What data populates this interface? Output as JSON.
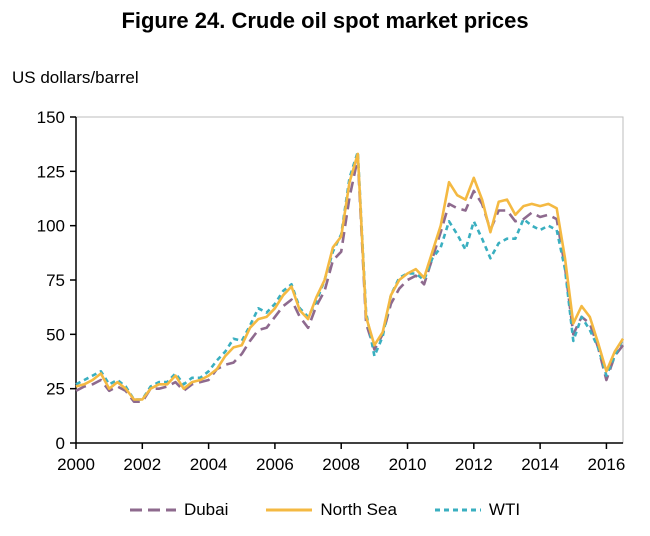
{
  "chart_data": {
    "type": "line",
    "title": "Figure 24. Crude oil spot market prices",
    "ylabel": "US dollars/barrel",
    "xlabel": "",
    "xlim": [
      2000,
      2016.5
    ],
    "ylim": [
      0,
      150
    ],
    "xticks": [
      "2000",
      "2002",
      "2004",
      "2006",
      "2008",
      "2010",
      "2012",
      "2014",
      "2016"
    ],
    "yticks": [
      "0",
      "25",
      "50",
      "75",
      "100",
      "125",
      "150"
    ],
    "grid": false,
    "legend_position": "bottom",
    "series": [
      {
        "name": "Dubai",
        "color": "#8E6A8E",
        "dash": "long-dash",
        "x": [
          2000,
          2000.25,
          2000.5,
          2000.75,
          2001,
          2001.25,
          2001.5,
          2001.75,
          2002,
          2002.25,
          2002.5,
          2002.75,
          2003,
          2003.25,
          2003.5,
          2003.75,
          2004,
          2004.25,
          2004.5,
          2004.75,
          2005,
          2005.25,
          2005.5,
          2005.75,
          2006,
          2006.25,
          2006.5,
          2006.75,
          2007,
          2007.25,
          2007.5,
          2007.75,
          2008,
          2008.25,
          2008.5,
          2008.75,
          2009,
          2009.25,
          2009.5,
          2009.75,
          2010,
          2010.25,
          2010.5,
          2010.75,
          2011,
          2011.25,
          2011.5,
          2011.75,
          2012,
          2012.25,
          2012.5,
          2012.75,
          2013,
          2013.25,
          2013.5,
          2013.75,
          2014,
          2014.25,
          2014.5,
          2014.75,
          2015,
          2015.25,
          2015.5,
          2015.75,
          2016,
          2016.25,
          2016.5
        ],
        "y": [
          24,
          26,
          27,
          29,
          24,
          26,
          24,
          19,
          19,
          25,
          25,
          26,
          28,
          24,
          27,
          28,
          29,
          34,
          36,
          37,
          41,
          47,
          52,
          53,
          58,
          63,
          66,
          58,
          53,
          63,
          70,
          84,
          88,
          113,
          131,
          55,
          43,
          50,
          64,
          71,
          75,
          77,
          73,
          85,
          97,
          110,
          108,
          107,
          116,
          110,
          98,
          107,
          107,
          102,
          103,
          106,
          104,
          105,
          103,
          81,
          50,
          58,
          55,
          44,
          29,
          40,
          45
        ]
      },
      {
        "name": "North Sea",
        "color": "#F4B942",
        "dash": "solid",
        "x": [
          2000,
          2000.25,
          2000.5,
          2000.75,
          2001,
          2001.25,
          2001.5,
          2001.75,
          2002,
          2002.25,
          2002.5,
          2002.75,
          2003,
          2003.25,
          2003.5,
          2003.75,
          2004,
          2004.25,
          2004.5,
          2004.75,
          2005,
          2005.25,
          2005.5,
          2005.75,
          2006,
          2006.25,
          2006.5,
          2006.75,
          2007,
          2007.25,
          2007.5,
          2007.75,
          2008,
          2008.25,
          2008.5,
          2008.75,
          2009,
          2009.25,
          2009.5,
          2009.75,
          2010,
          2010.25,
          2010.5,
          2010.75,
          2011,
          2011.25,
          2011.5,
          2011.75,
          2012,
          2012.25,
          2012.5,
          2012.75,
          2013,
          2013.25,
          2013.5,
          2013.75,
          2014,
          2014.25,
          2014.5,
          2014.75,
          2015,
          2015.25,
          2015.5,
          2015.75,
          2016,
          2016.25,
          2016.5
        ],
        "y": [
          26,
          27,
          29,
          32,
          25,
          28,
          25,
          20,
          20,
          25,
          27,
          27,
          31,
          25,
          28,
          29,
          31,
          34,
          40,
          44,
          45,
          53,
          57,
          58,
          62,
          68,
          72,
          61,
          57,
          67,
          75,
          90,
          95,
          120,
          133,
          58,
          45,
          51,
          68,
          75,
          78,
          80,
          76,
          88,
          100,
          120,
          114,
          112,
          122,
          112,
          97,
          111,
          112,
          105,
          109,
          110,
          109,
          110,
          108,
          85,
          55,
          63,
          58,
          46,
          33,
          42,
          48
        ]
      },
      {
        "name": "WTI",
        "color": "#3AAFC0",
        "dash": "short-dash",
        "x": [
          2000,
          2000.25,
          2000.5,
          2000.75,
          2001,
          2001.25,
          2001.5,
          2001.75,
          2002,
          2002.25,
          2002.5,
          2002.75,
          2003,
          2003.25,
          2003.5,
          2003.75,
          2004,
          2004.25,
          2004.5,
          2004.75,
          2005,
          2005.25,
          2005.5,
          2005.75,
          2006,
          2006.25,
          2006.5,
          2006.75,
          2007,
          2007.25,
          2007.5,
          2007.75,
          2008,
          2008.25,
          2008.5,
          2008.75,
          2009,
          2009.25,
          2009.5,
          2009.75,
          2010,
          2010.25,
          2010.5,
          2010.75,
          2011,
          2011.25,
          2011.5,
          2011.75,
          2012,
          2012.25,
          2012.5,
          2012.75,
          2013,
          2013.25,
          2013.5,
          2013.75,
          2014,
          2014.25,
          2014.5,
          2014.75,
          2015,
          2015.25,
          2015.5,
          2015.75,
          2016,
          2016.25,
          2016.5
        ],
        "y": [
          27,
          29,
          31,
          33,
          27,
          29,
          26,
          20,
          20,
          26,
          28,
          28,
          32,
          27,
          30,
          30,
          33,
          38,
          42,
          48,
          47,
          54,
          62,
          60,
          64,
          70,
          73,
          62,
          58,
          65,
          75,
          88,
          96,
          122,
          134,
          60,
          40,
          49,
          68,
          76,
          78,
          78,
          75,
          85,
          90,
          102,
          96,
          89,
          102,
          94,
          85,
          92,
          94,
          94,
          103,
          100,
          98,
          100,
          98,
          80,
          47,
          58,
          52,
          44,
          31,
          40,
          48
        ]
      }
    ]
  }
}
